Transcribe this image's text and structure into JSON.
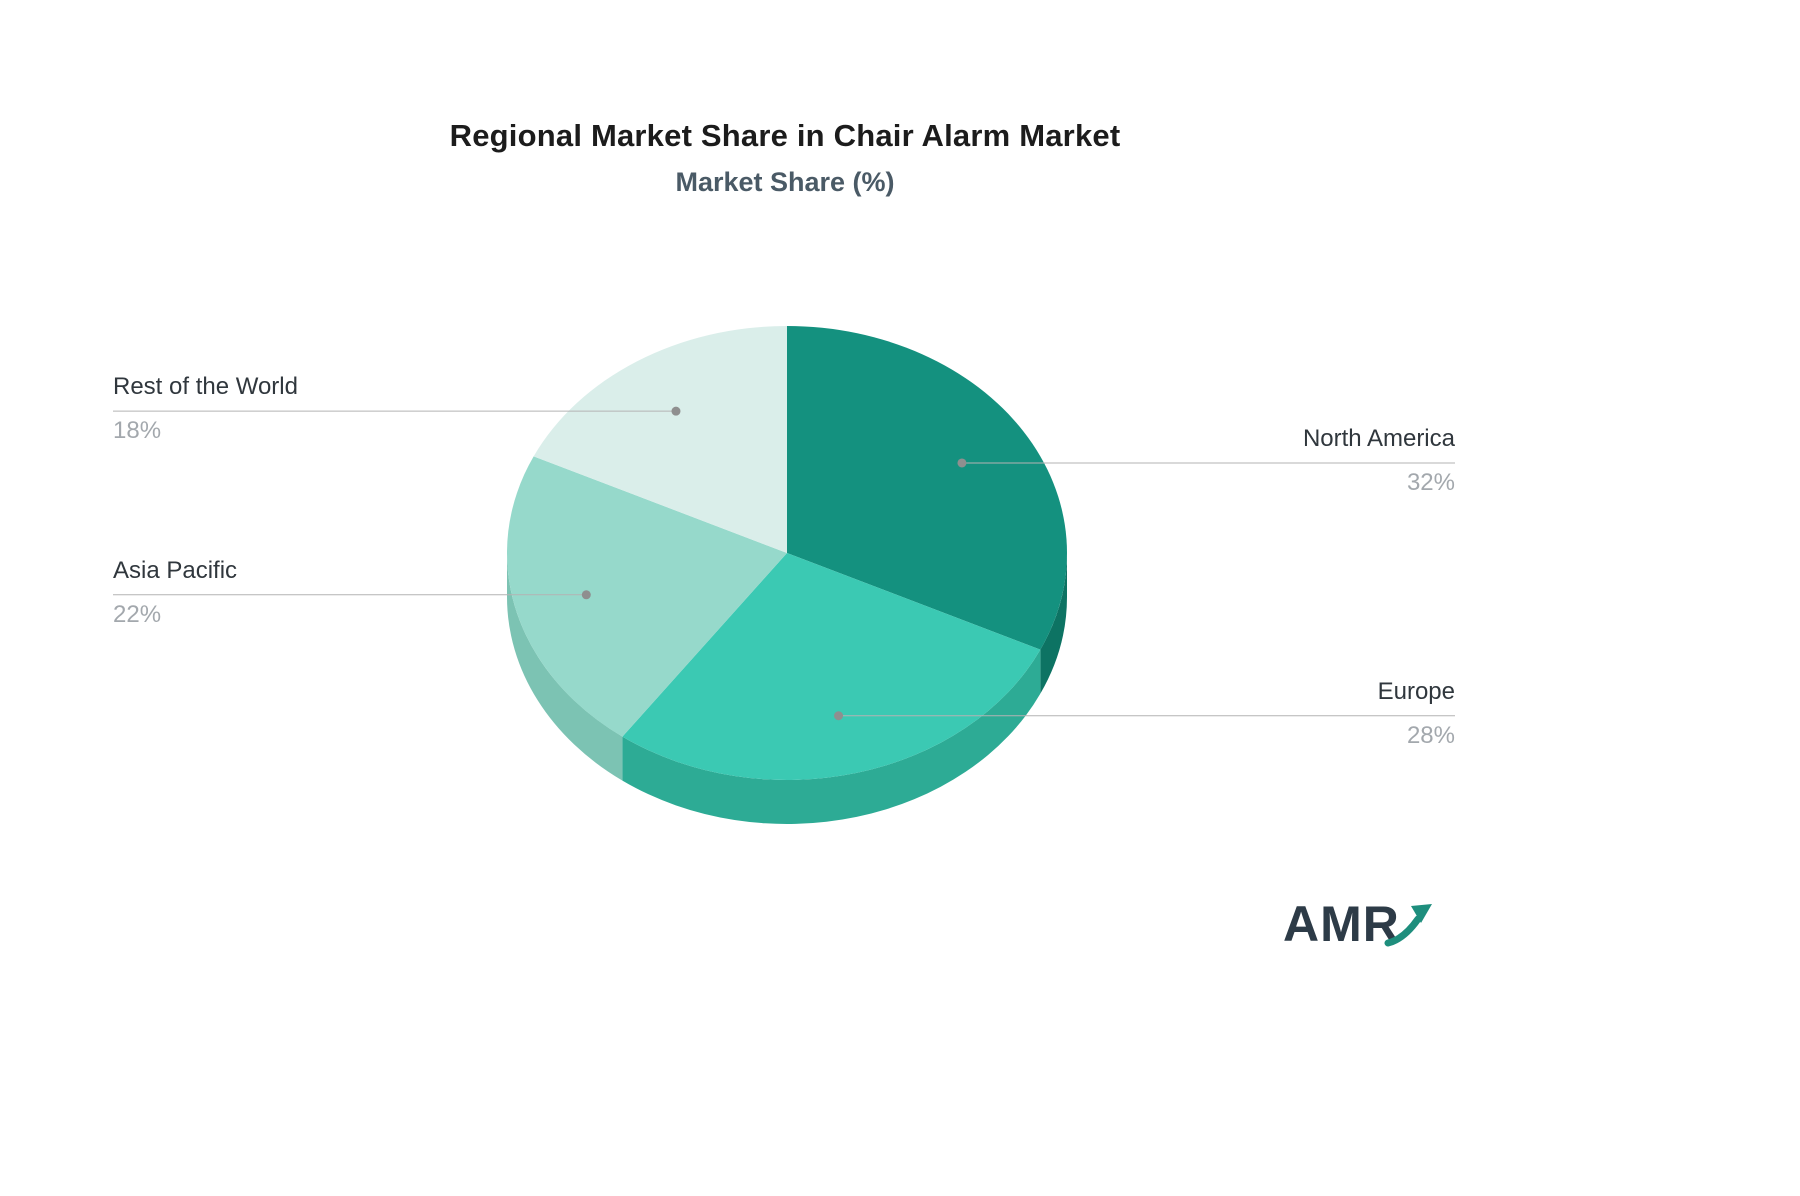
{
  "page": {
    "title": "Regional Market Share in Chair Alarm Market",
    "subtitle": "Market Share (%)",
    "brand": "AMR",
    "colors": {
      "title_color": "#1c1c1c",
      "subtitle_color": "#4a5a66",
      "name_color": "#30373d",
      "value_color": "#a3a8ad",
      "line_color": "#b3b3b3",
      "dot_color": "#8f8f8f",
      "brand_text": "#2d3b47",
      "brand_accent": "#1e8e7d"
    }
  },
  "chart_data": {
    "type": "pie",
    "title": "Regional Market Share in Chair Alarm Market",
    "subtitle": "Market Share (%)",
    "unit": "%",
    "start_angle_deg": -90,
    "direction": "clockwise",
    "legend_position": "none",
    "style": "3d-pie with leader-line labels",
    "series": [
      {
        "name": "North America",
        "value": 32,
        "label": "32%",
        "color": "#14917f",
        "side_color": "#0d7363",
        "label_side": "right"
      },
      {
        "name": "Europe",
        "value": 28,
        "label": "28%",
        "color": "#3bc9b3",
        "side_color": "#2dab95",
        "label_side": "right"
      },
      {
        "name": "Asia Pacific",
        "value": 22,
        "label": "22%",
        "color": "#96d9cb",
        "side_color": "#7cc3b3",
        "label_side": "left"
      },
      {
        "name": "Rest of the World",
        "value": 18,
        "label": "18%",
        "color": "#daeeea",
        "side_color": "#bcd9d3",
        "label_side": "left"
      }
    ]
  }
}
